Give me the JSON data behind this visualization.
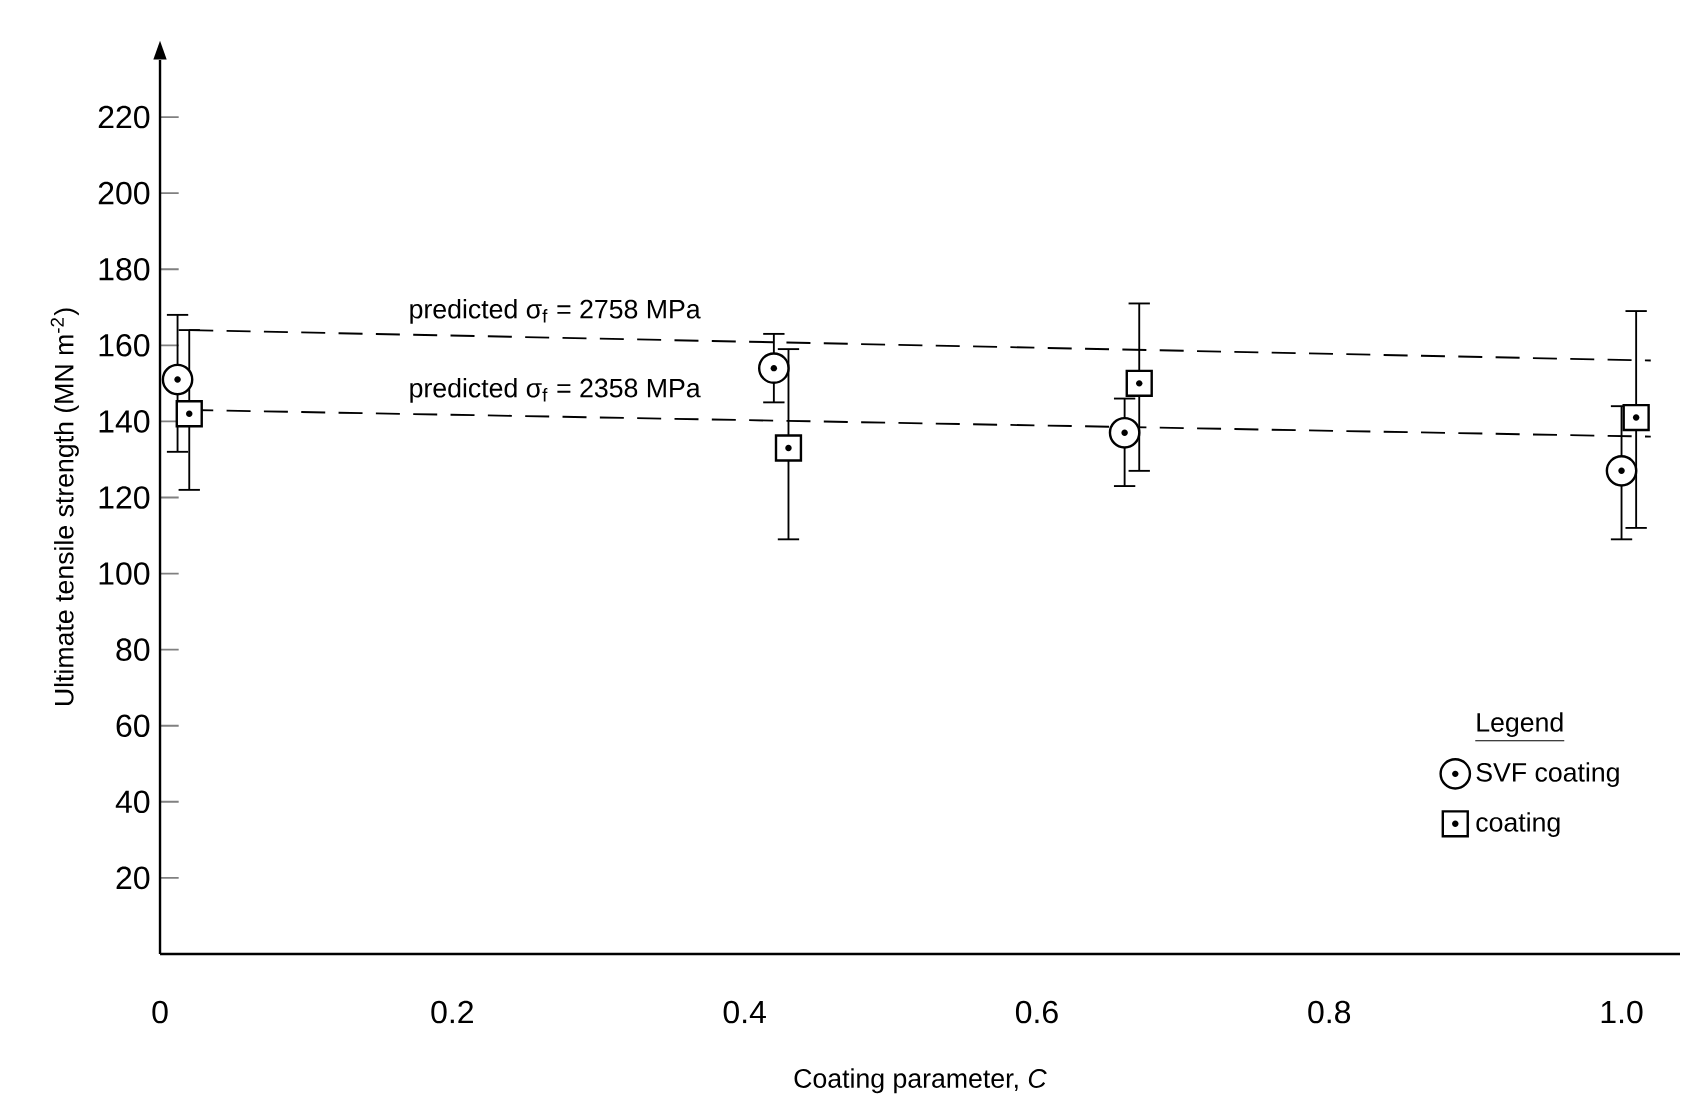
{
  "chart_data": {
    "type": "scatter",
    "xlabel": "Coating parameter, *C*",
    "ylabel": "Ultimate tensile strength (MN m$^{-2}$)",
    "xlim": [
      0,
      1.04
    ],
    "ylim": [
      0,
      235
    ],
    "xticks": [
      0,
      0.2,
      0.4,
      0.6,
      0.8,
      {
        "value": 1,
        "label": "1.0"
      }
    ],
    "yticks": [
      20,
      40,
      60,
      80,
      100,
      120,
      140,
      160,
      180,
      200,
      220
    ],
    "grid": false,
    "legend": "bottom right",
    "legend_title": "Legend",
    "series": [
      {
        "name": "SVF coating",
        "color": "#000000",
        "marker": "circle",
        "x": [
          0.012,
          0.42,
          0.66,
          1.0
        ],
        "values": [
          151,
          154,
          137,
          127
        ],
        "errors": [
          [
            132,
            168
          ],
          [
            145,
            163
          ],
          [
            123,
            146
          ],
          [
            109,
            144
          ]
        ]
      },
      {
        "name": "coating",
        "color": "#000000",
        "marker": "square",
        "x": [
          0.02,
          0.43,
          0.67,
          1.01
        ],
        "values": [
          142,
          133,
          150,
          141
        ],
        "errors": [
          [
            122,
            164
          ],
          [
            109,
            159
          ],
          [
            127,
            171
          ],
          [
            112,
            169
          ]
        ]
      },
      {
        "name": "predicted σ$_{f}$ = 2758 MPa",
        "type": "line",
        "line_style": "dashed",
        "color": "#000000",
        "x": [
          0.02,
          1.02
        ],
        "values": [
          164,
          156
        ]
      },
      {
        "name": "predicted σ$_{f}$ = 2358 MPa",
        "type": "line",
        "line_style": "dashed",
        "color": "#000000",
        "x": [
          0.02,
          1.02
        ],
        "values": [
          143,
          136
        ]
      }
    ]
  }
}
